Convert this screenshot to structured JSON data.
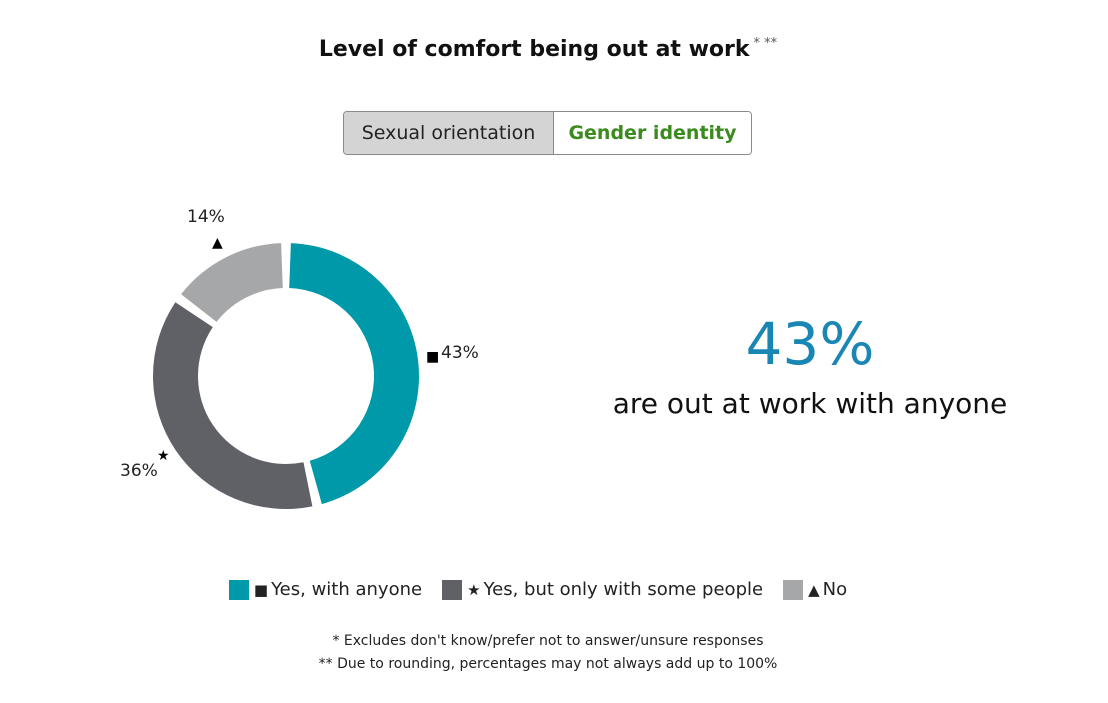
{
  "title": "Level of comfort being out at work",
  "title_footnote_mark": "* **",
  "toggle": {
    "options": [
      "Sexual orientation",
      "Gender identity"
    ],
    "selected": "Gender identity"
  },
  "colors": {
    "yes_anyone": "#0099aa",
    "yes_some": "#5f6166",
    "no": "#a6a7a9",
    "headline": "#1a86b3",
    "toggle_active": "#3b8a1e"
  },
  "chart_data": {
    "type": "pie",
    "donut": true,
    "slices": [
      {
        "label": "Yes, with anyone",
        "marker": "■",
        "value": 43,
        "display": "43%",
        "color": "#0099aa"
      },
      {
        "label": "Yes, but only with some people",
        "marker": "★",
        "value": 36,
        "display": "36%",
        "color": "#5f6166"
      },
      {
        "label": "No",
        "marker": "▲",
        "value": 14,
        "display": "14%",
        "color": "#a6a7a9"
      }
    ]
  },
  "headline": {
    "value": "43%",
    "text": "are out at work with anyone"
  },
  "legend": [
    {
      "marker": "■",
      "label": "Yes, with anyone",
      "color": "#0099aa"
    },
    {
      "marker": "★",
      "label": "Yes, but only with some people",
      "color": "#5f6166"
    },
    {
      "marker": "▲",
      "label": "No",
      "color": "#a6a7a9"
    }
  ],
  "footnotes": [
    "* Excludes don't know/prefer not to answer/unsure responses",
    "** Due to rounding, percentages may not always add up to 100%"
  ]
}
